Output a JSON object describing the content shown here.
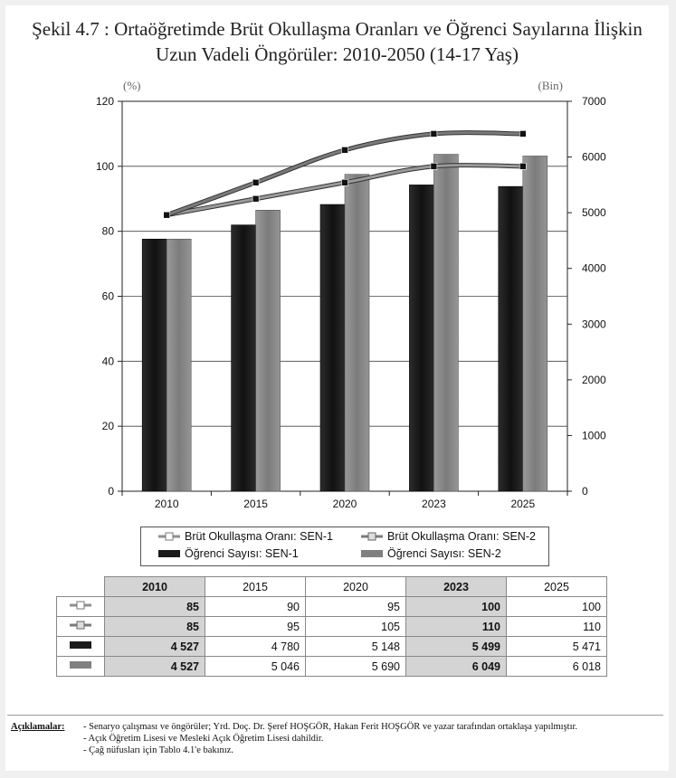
{
  "title": {
    "line1": "Şekil 4.7 : Ortaöğretimde Brüt Okullaşma Oranları ve Öğrenci Sayılarına İlişkin",
    "line2": "Uzun Vadeli Öngörüler: 2010-2050 (14-17 Yaş)"
  },
  "chart_data": {
    "type": "bar",
    "categories": [
      "2010",
      "2015",
      "2020",
      "2023",
      "2025"
    ],
    "left_axis": {
      "unit": "(%)",
      "range": [
        0,
        120
      ],
      "ticks": [
        0,
        20,
        40,
        60,
        80,
        100,
        120
      ]
    },
    "right_axis": {
      "unit": "(Bin)",
      "range": [
        0,
        7000
      ],
      "ticks": [
        0,
        1000,
        2000,
        3000,
        4000,
        5000,
        6000,
        7000
      ]
    },
    "bar_series": [
      {
        "name": "Öğrenci Sayısı: SEN-1",
        "axis": "right",
        "color": "#1a1a1a",
        "values": [
          4527,
          4780,
          5148,
          5499,
          5471
        ]
      },
      {
        "name": "Öğrenci Sayısı: SEN-2",
        "axis": "right",
        "color": "#808080",
        "values": [
          4527,
          5046,
          5690,
          6049,
          6018
        ]
      }
    ],
    "line_series": [
      {
        "name": "Brüt Okullaşma Oranı: SEN-1",
        "axis": "left",
        "color": "#9a9a9a",
        "values": [
          85,
          90,
          95,
          100,
          100
        ]
      },
      {
        "name": "Brüt Okullaşma Oranı: SEN-2",
        "axis": "left",
        "color": "#7a7a7a",
        "values": [
          85,
          95,
          105,
          110,
          110
        ]
      }
    ],
    "grid": "horizontal",
    "legend_position": "bottom"
  },
  "table": {
    "headers": [
      "2010",
      "2015",
      "2020",
      "2023",
      "2025"
    ],
    "highlight_columns": [
      0,
      3
    ],
    "rows": [
      [
        "85",
        "90",
        "95",
        "100",
        "100"
      ],
      [
        "85",
        "95",
        "105",
        "110",
        "110"
      ],
      [
        "4 527",
        "4 780",
        "5 148",
        "5 499",
        "5 471"
      ],
      [
        "4 527",
        "5 046",
        "5 690",
        "6 049",
        "6 018"
      ]
    ]
  },
  "notes": {
    "label": "Açıklamalar:",
    "items": [
      "- Senaryo çalışması ve öngörüler; Yrd. Doç. Dr. Şeref HOŞGÖR, Hakan Ferit HOŞGÖR ve yazar tarafından ortaklaşa yapılmıştır.",
      "- Açık Öğretim Lisesi ve Mesleki Açık Öğretim Lisesi dahildir.",
      "- Çağ nüfusları için Tablo 4.1'e bakınız."
    ]
  }
}
